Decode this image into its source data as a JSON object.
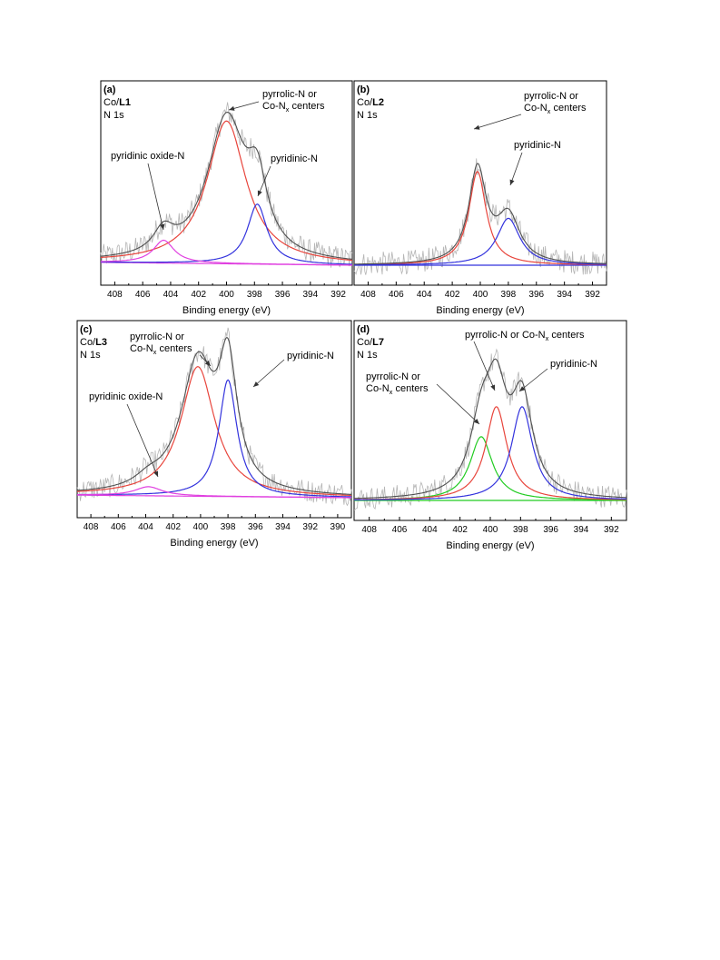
{
  "chart_data": [
    {
      "type": "line",
      "panel_label": "(a)",
      "sample_prefix": "Co/",
      "sample_bold": "L1",
      "spectrum": "N 1s",
      "xlabel": "Binding energy (eV)",
      "xlim": [
        409,
        391
      ],
      "ylim": [
        0,
        1.05
      ],
      "xticks": [
        "408",
        "406",
        "404",
        "402",
        "400",
        "398",
        "396",
        "394",
        "392"
      ],
      "baseline": {
        "left": 0.02,
        "right": 0.0
      },
      "colors": {
        "data": "#b5b5b5",
        "envelope": "#505050",
        "background": "#e040e0"
      },
      "series": [
        {
          "name": "pyrrolic-N or Co-Nx centers",
          "color": "#e8453c",
          "center": 400.0,
          "height": 1.0,
          "width": 1.7
        },
        {
          "name": "pyridinic-N",
          "color": "#3333dd",
          "center": 397.8,
          "height": 0.42,
          "width": 0.85
        },
        {
          "name": "pyridinic oxide-N",
          "color": "#e040e0",
          "center": 404.5,
          "height": 0.16,
          "width": 0.9
        }
      ],
      "annotations": [
        {
          "lines": [
            "pyrrolic-N or",
            "Co-N|x| centers"
          ],
          "target": "pyrrolic-N or Co-Nx centers"
        },
        {
          "lines": [
            "pyridinic-N"
          ],
          "target": "pyridinic-N"
        },
        {
          "lines": [
            "pyridinic oxide-N"
          ],
          "target": "pyridinic oxide-N"
        }
      ]
    },
    {
      "type": "line",
      "panel_label": "(b)",
      "sample_prefix": "Co/",
      "sample_bold": "L2",
      "spectrum": "N 1s",
      "xlabel": "Binding energy (eV)",
      "xlim": [
        409,
        391
      ],
      "ylim": [
        0,
        1.6
      ],
      "xticks": [
        "408",
        "406",
        "404",
        "402",
        "400",
        "398",
        "396",
        "394",
        "392"
      ],
      "baseline": {
        "left": 0.0,
        "right": 0.0
      },
      "colors": {
        "data": "#b5b5b5",
        "envelope": "#505050",
        "background": "#3333dd"
      },
      "series": [
        {
          "name": "pyrrolic-N or Co-Nx centers",
          "color": "#e8453c",
          "center": 400.2,
          "height": 1.0,
          "width": 0.75
        },
        {
          "name": "pyridinic-N",
          "color": "#3333dd",
          "center": 398.0,
          "height": 0.5,
          "width": 1.0
        }
      ],
      "annotations": [
        {
          "lines": [
            "pyrrolic-N or",
            "Co-N|x| centers"
          ],
          "target": "pyrrolic-N or Co-Nx centers"
        },
        {
          "lines": [
            "pyridinic-N"
          ],
          "target": "pyridinic-N"
        }
      ]
    },
    {
      "type": "line",
      "panel_label": "(c)",
      "sample_prefix": "Co/",
      "sample_bold": "L3",
      "spectrum": "N 1s",
      "xlabel": "Binding energy (eV)",
      "xlim": [
        409,
        389
      ],
      "ylim": [
        0,
        1.1
      ],
      "xticks": [
        "408",
        "406",
        "404",
        "402",
        "400",
        "398",
        "396",
        "394",
        "392",
        "390"
      ],
      "baseline": {
        "left": 0.02,
        "right": 0.0
      },
      "colors": {
        "data": "#b5b5b5",
        "envelope": "#505050",
        "background": "#e040e0"
      },
      "series": [
        {
          "name": "pyrrolic-N or Co-Nx centers",
          "color": "#e8453c",
          "center": 400.2,
          "height": 1.0,
          "width": 1.5
        },
        {
          "name": "pyridinic-N",
          "color": "#3333dd",
          "center": 398.0,
          "height": 0.9,
          "width": 0.8
        },
        {
          "name": "pyridinic oxide-N",
          "color": "#e040e0",
          "center": 403.8,
          "height": 0.07,
          "width": 1.2
        }
      ],
      "annotations": [
        {
          "lines": [
            "pyrrolic-N or",
            "Co-N|x| centers"
          ],
          "target": "pyrrolic-N or Co-Nx centers"
        },
        {
          "lines": [
            "pyridinic-N"
          ],
          "target": "pyridinic-N"
        },
        {
          "lines": [
            "pyridinic oxide-N"
          ],
          "target": "pyridinic oxide-N"
        }
      ]
    },
    {
      "type": "line",
      "panel_label": "(d)",
      "sample_prefix": "Co/",
      "sample_bold": "L7",
      "spectrum": "N 1s",
      "xlabel": "Binding energy (eV)",
      "xlim": [
        409,
        391
      ],
      "ylim": [
        0,
        1.55
      ],
      "xticks": [
        "408",
        "406",
        "404",
        "402",
        "400",
        "398",
        "396",
        "394",
        "392"
      ],
      "baseline": {
        "left": 0.0,
        "right": 0.0
      },
      "colors": {
        "data": "#b5b5b5",
        "envelope": "#505050",
        "background": "#22cc22"
      },
      "series": [
        {
          "name": "pyrrolic-N or Co-Nx centers (green)",
          "color": "#22cc22",
          "center": 400.6,
          "height": 0.68,
          "width": 0.9
        },
        {
          "name": "pyrrolic-N or Co-Nx centers (red)",
          "color": "#e8453c",
          "center": 399.6,
          "height": 1.0,
          "width": 0.85
        },
        {
          "name": "pyridinic-N",
          "color": "#3333dd",
          "center": 397.9,
          "height": 1.0,
          "width": 0.85
        }
      ],
      "annotations": [
        {
          "lines": [
            "pyrrolic-N or Co-N|x| centers"
          ],
          "target": "pyrrolic-N or Co-Nx centers (red)"
        },
        {
          "lines": [
            "pyridinic-N"
          ],
          "target": "pyridinic-N"
        },
        {
          "lines": [
            "pyrrolic-N or",
            "Co-N|x| centers"
          ],
          "target": "pyrrolic-N or Co-Nx centers (green)"
        }
      ]
    }
  ]
}
